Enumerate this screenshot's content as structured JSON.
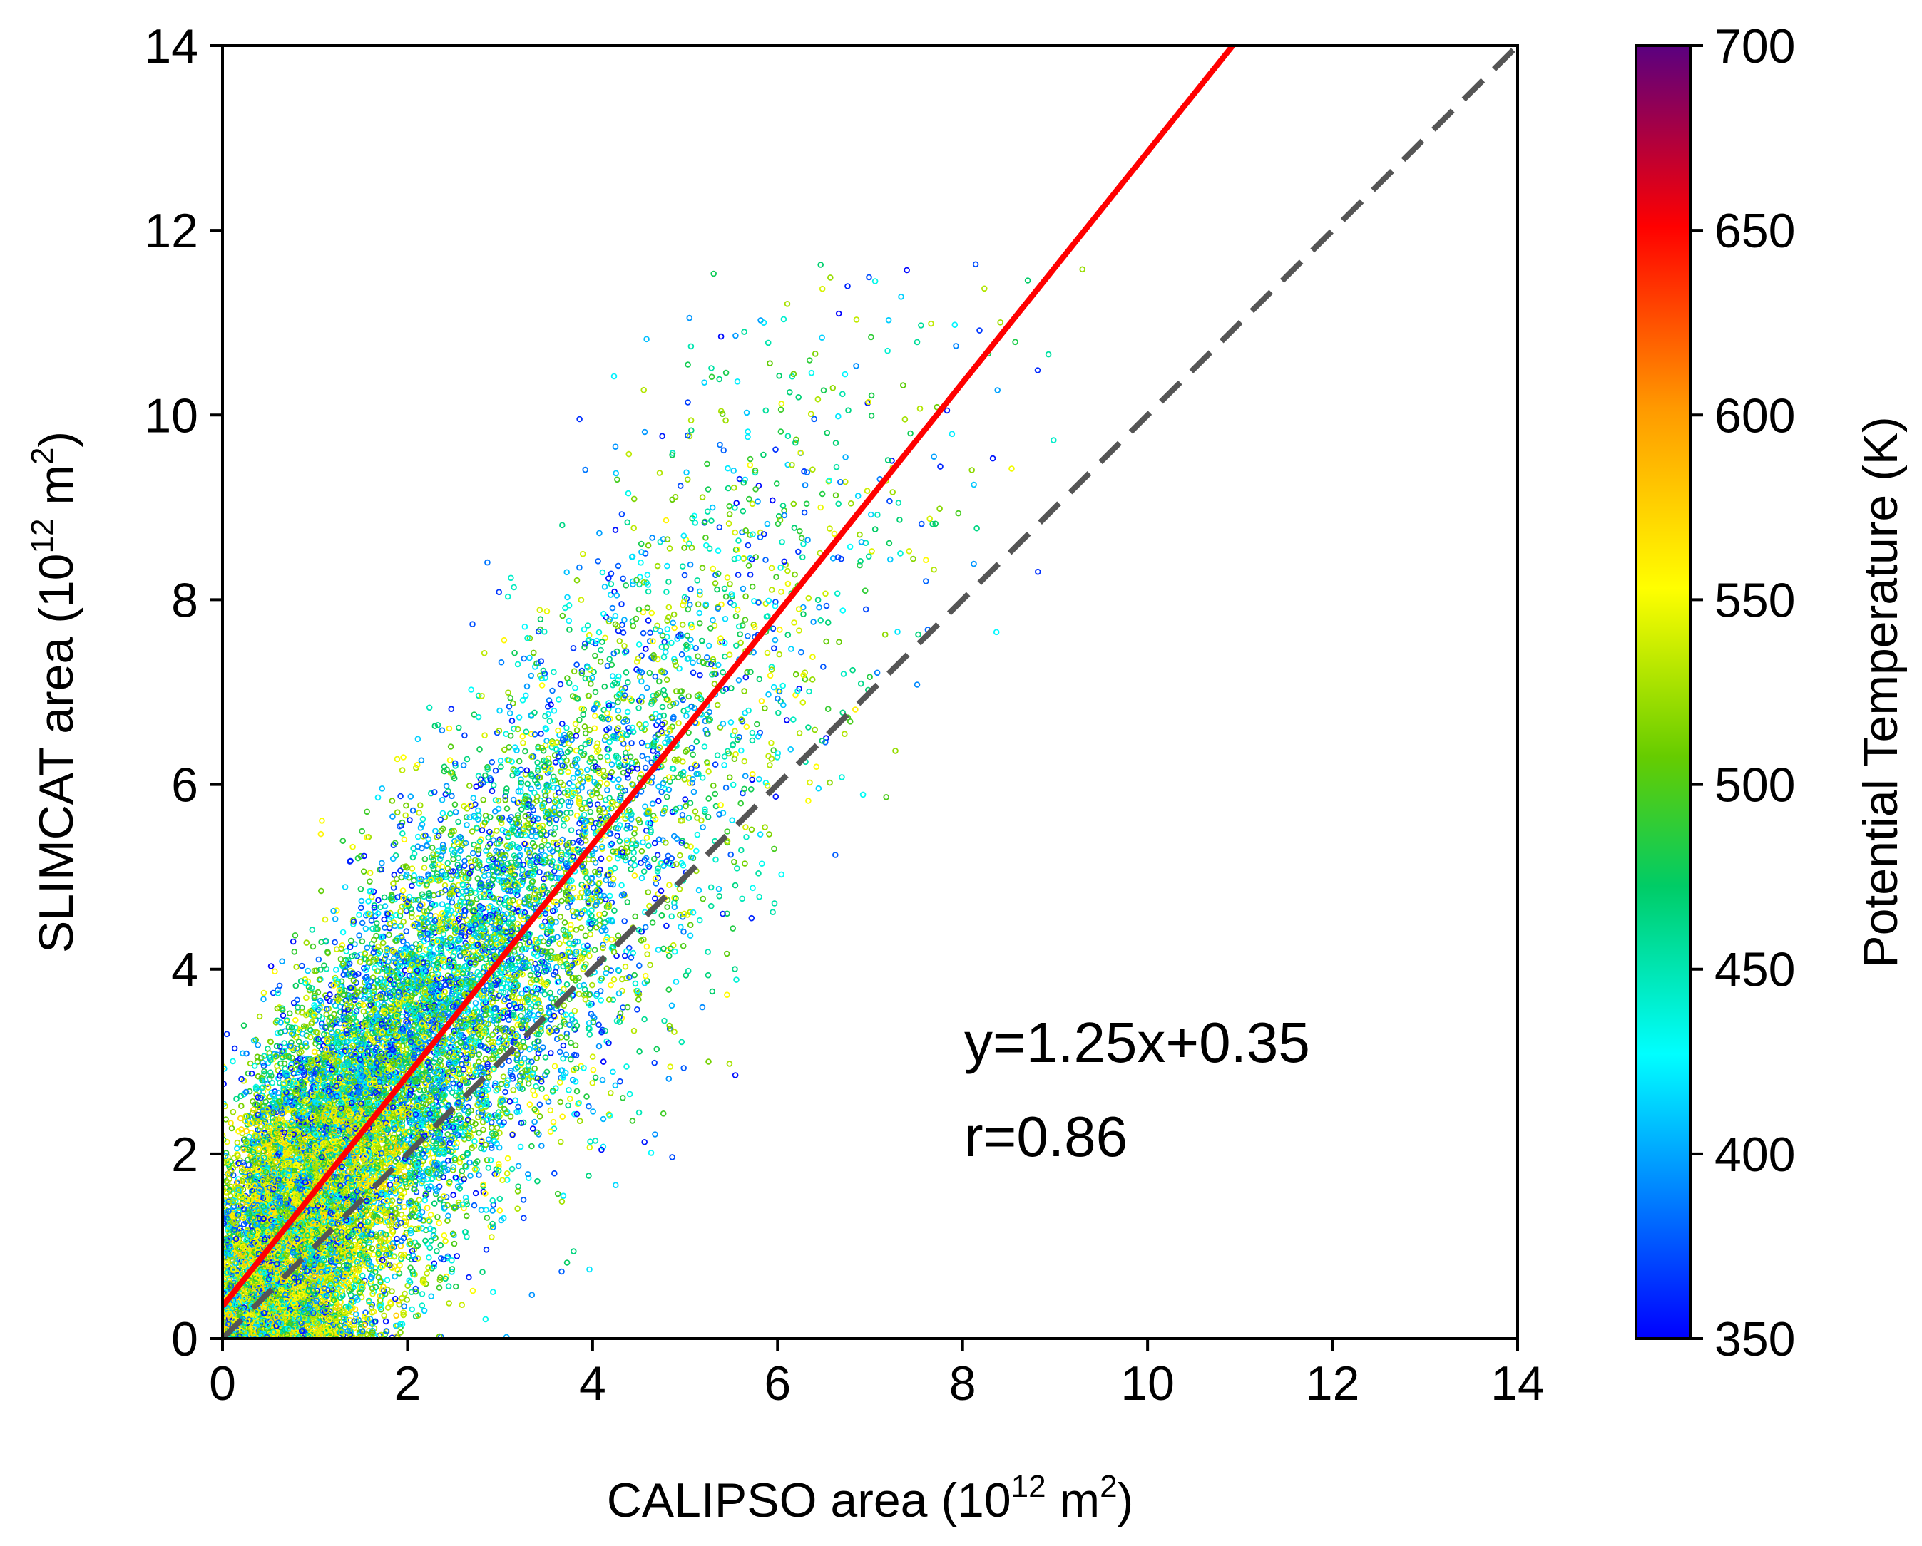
{
  "chart_data": {
    "type": "scatter",
    "title": "",
    "xlabel": "CALIPSO area (10",
    "xlabel_sup": "12",
    "xlabel_tail": " m",
    "xlabel_sup2": "2",
    "xlabel_end": ")",
    "ylabel": "SLIMCAT area (10",
    "ylabel_sup": "12",
    "ylabel_tail": " m",
    "ylabel_sup2": "2",
    "ylabel_end": ")",
    "xlim": [
      0,
      14
    ],
    "ylim": [
      0,
      14
    ],
    "xticks": [
      "0",
      "2",
      "4",
      "6",
      "8",
      "10",
      "12",
      "14"
    ],
    "yticks": [
      "0",
      "2",
      "4",
      "6",
      "8",
      "10",
      "12",
      "14"
    ],
    "fit_line": {
      "slope": 1.25,
      "intercept": 0.35,
      "color": "#ff0000"
    },
    "identity_line": {
      "slope": 1,
      "intercept": 0,
      "color": "#555555",
      "style": "dashed"
    },
    "annotations": {
      "equation": "y=1.25x+0.35",
      "correlation": "r=0.86"
    },
    "colorbar": {
      "label": "Potential Temperature (K)",
      "min": 350,
      "max": 700,
      "ticks": [
        "350",
        "400",
        "450",
        "500",
        "550",
        "600",
        "650",
        "700"
      ],
      "colormap": "jet"
    },
    "point_cloud": {
      "description_values": "approx. 15000 points, x range 0–9.4, y range 0–11.7; mean y ≈ 1.25x+0.35 with spread",
      "n_points": 15000,
      "x_range": [
        0,
        9.4
      ],
      "y_range": [
        0,
        11.7
      ],
      "temperature_range": [
        350,
        560
      ]
    }
  }
}
